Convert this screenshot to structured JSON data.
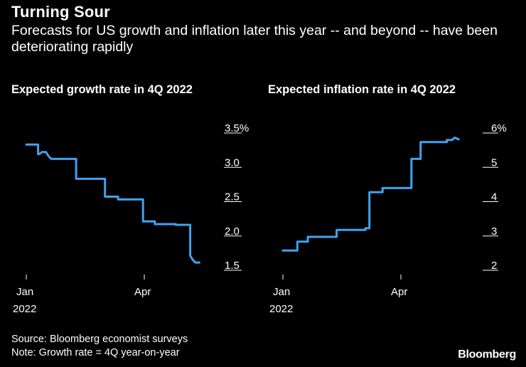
{
  "header": {
    "title": "Turning Sour",
    "subtitle": "Forecasts for US growth and inflation later this year -- and beyond -- have been deteriorating rapidly"
  },
  "footer": {
    "source": "Source: Bloomberg economist surveys",
    "note": "Note: Growth rate = 4Q year-on-year",
    "brand": "Bloomberg"
  },
  "colors": {
    "line": "#3fa3f0",
    "background": "#000000",
    "text": "#ffffff"
  },
  "chart_data": [
    {
      "type": "line",
      "title": "Expected growth rate in 4Q 2022",
      "y_axis_side": "right",
      "ylim": [
        1.5,
        3.5
      ],
      "yticks": [
        1.5,
        2.0,
        2.5,
        3.0,
        3.5
      ],
      "ytick_labels": [
        "1.5",
        "2.0",
        "2.5",
        "3.0",
        "3.5%"
      ],
      "xlim": [
        "2022-01-01",
        "2022-05-20"
      ],
      "xticks": [
        {
          "date": "2022-01-01",
          "label": "Jan",
          "sublabel": "2022"
        },
        {
          "date": "2022-04-01",
          "label": "Apr",
          "sublabel": ""
        }
      ],
      "series": [
        {
          "x": [
            "2022-01-01",
            "2022-01-10",
            "2022-01-10",
            "2022-01-11",
            "2022-01-13",
            "2022-01-16",
            "2022-01-18",
            "2022-01-20",
            "2022-02-08",
            "2022-02-08",
            "2022-03-02",
            "2022-03-02",
            "2022-03-12",
            "2022-03-12",
            "2022-03-31",
            "2022-03-31",
            "2022-04-09",
            "2022-04-09",
            "2022-04-25",
            "2022-04-25",
            "2022-05-06",
            "2022-05-06",
            "2022-05-08",
            "2022-05-10",
            "2022-05-13"
          ],
          "y": [
            3.26,
            3.26,
            3.12,
            3.12,
            3.15,
            3.15,
            3.09,
            3.05,
            3.05,
            2.76,
            2.76,
            2.5,
            2.5,
            2.46,
            2.46,
            2.14,
            2.14,
            2.1,
            2.1,
            2.09,
            2.09,
            1.64,
            1.58,
            1.54,
            1.54
          ]
        }
      ]
    },
    {
      "type": "line",
      "title": "Expected inflation rate in 4Q 2022",
      "y_axis_side": "right",
      "ylim": [
        2,
        6
      ],
      "yticks": [
        2,
        3,
        4,
        5,
        6
      ],
      "ytick_labels": [
        "2",
        "3",
        "4",
        "5",
        "6%"
      ],
      "xlim": [
        "2022-01-01",
        "2022-05-20"
      ],
      "xticks": [
        {
          "date": "2022-01-01",
          "label": "Jan",
          "sublabel": "2022"
        },
        {
          "date": "2022-04-01",
          "label": "Apr",
          "sublabel": ""
        }
      ],
      "series": [
        {
          "x": [
            "2022-01-01",
            "2022-01-12",
            "2022-01-12",
            "2022-01-20",
            "2022-01-20",
            "2022-02-11",
            "2022-02-11",
            "2022-03-05",
            "2022-03-05",
            "2022-03-08",
            "2022-03-08",
            "2022-03-18",
            "2022-03-18",
            "2022-04-09",
            "2022-04-09",
            "2022-04-16",
            "2022-04-16",
            "2022-05-06",
            "2022-05-06",
            "2022-05-10",
            "2022-05-12",
            "2022-05-15"
          ],
          "y": [
            2.43,
            2.43,
            2.69,
            2.69,
            2.83,
            2.83,
            3.03,
            3.03,
            3.08,
            3.08,
            4.13,
            4.13,
            4.25,
            4.25,
            5.1,
            5.1,
            5.59,
            5.59,
            5.65,
            5.65,
            5.72,
            5.67
          ]
        }
      ]
    }
  ]
}
